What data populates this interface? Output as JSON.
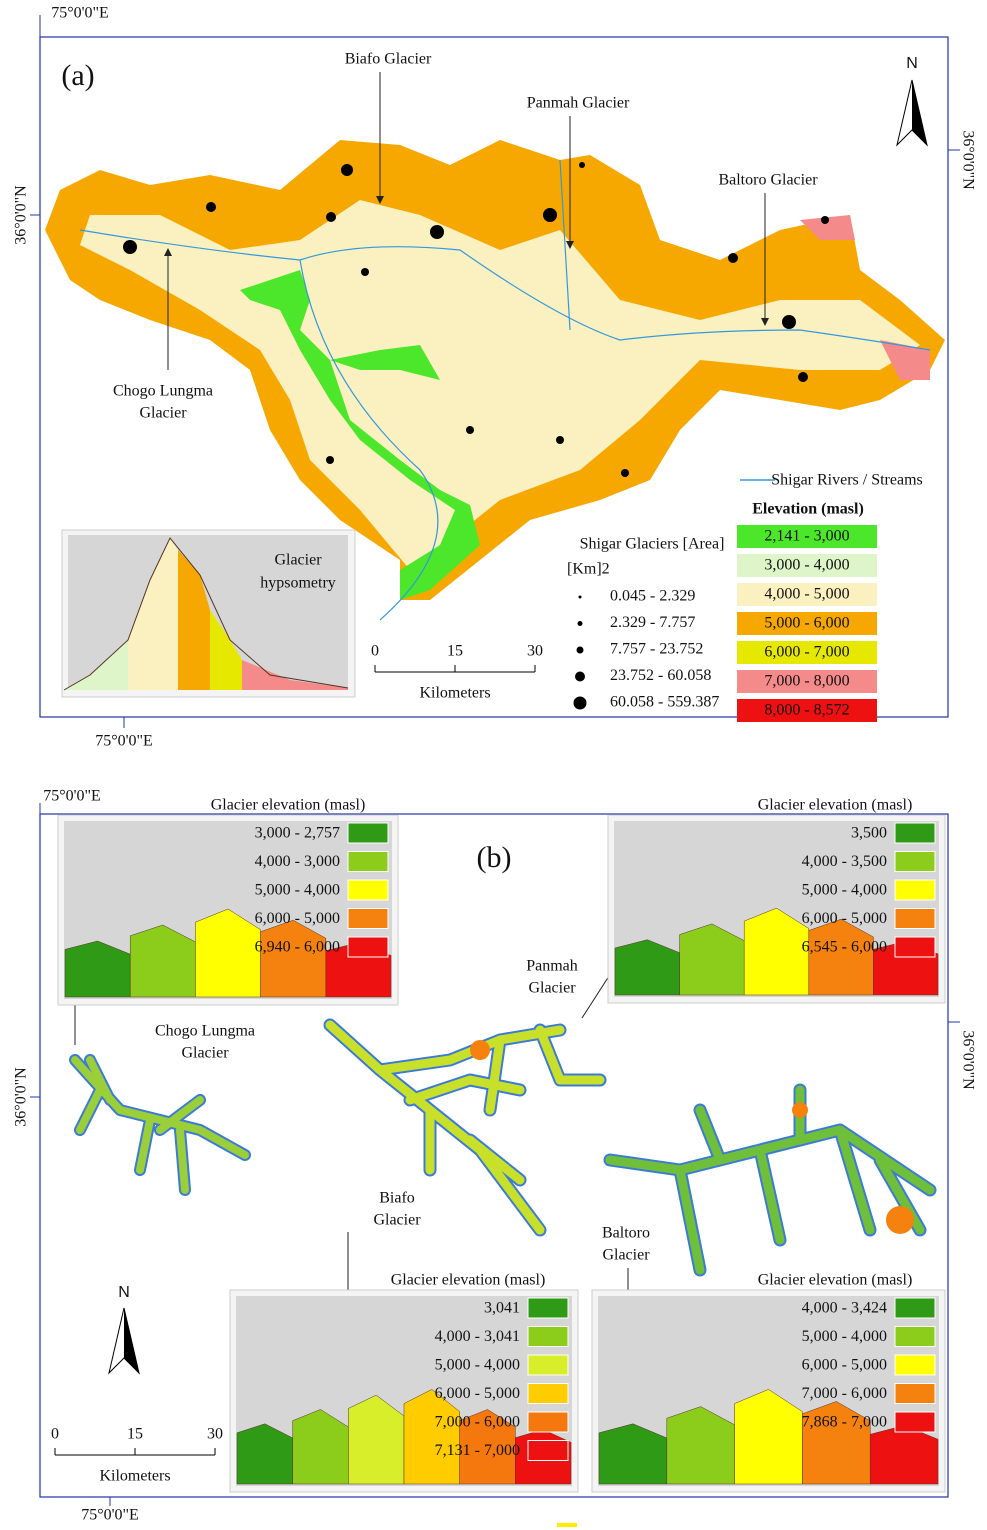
{
  "panel_a": {
    "label": "(a)",
    "north": "N",
    "coords": {
      "top": "75°0'0\"E",
      "bottom": "75°0'0\"E",
      "left": "36°0'0\"N",
      "right": "36°0'0\"N"
    },
    "glaciers": [
      {
        "lines": [
          "Biafo Glacier"
        ]
      },
      {
        "lines": [
          "Panmah Glacier"
        ]
      },
      {
        "lines": [
          "Baltoro Glacier"
        ]
      },
      {
        "lines": [
          "Chogo Lungma",
          "Glacier"
        ]
      }
    ],
    "inset_title": [
      "Glacier",
      "hypsometry"
    ],
    "river_legend": "Shigar Rivers / Streams",
    "elevation_legend": {
      "title": "Elevation (masl)",
      "items": [
        {
          "label": "2,141 - 3,000",
          "color": "#4ce62a"
        },
        {
          "label": "3,000 - 4,000",
          "color": "#ddf5c8"
        },
        {
          "label": "4,000 - 5,000",
          "color": "#fbf0c0"
        },
        {
          "label": "5,000 - 6,000",
          "color": "#f6a800"
        },
        {
          "label": "6,000 - 7,000",
          "color": "#e6e800"
        },
        {
          "label": "7,000 - 8,000",
          "color": "#f58a8a"
        },
        {
          "label": "8,000 - 8,572",
          "color": "#ee1111"
        }
      ]
    },
    "area_legend": {
      "title": "Shigar Glaciers [Area]",
      "unit": "[Km]2",
      "items": [
        "0.045 - 2.329",
        "2.329 - 7.757",
        "7.757 - 23.752",
        "23.752 - 60.058",
        "60.058 - 559.387"
      ]
    },
    "scale": {
      "ticks": [
        0,
        15,
        30
      ],
      "unit": "Kilometers"
    }
  },
  "panel_b": {
    "label": "(b)",
    "north": "N",
    "coords": {
      "top": "75°0'0\"E",
      "bottom": "75°0'0\"E",
      "left": "36°0'0\"N",
      "right": "36°0'0\"N"
    },
    "insets": [
      {
        "glacier": [
          "Chogo Lungma",
          "Glacier"
        ],
        "title": "Glacier elevation (masl)",
        "items": [
          {
            "label": "3,000 - 2,757",
            "color": "#2e9a16"
          },
          {
            "label": "4,000 - 3,000",
            "color": "#8ccc1a"
          },
          {
            "label": "5,000 - 4,000",
            "color": "#ffff00"
          },
          {
            "label": "6,000 - 5,000",
            "color": "#f5820f"
          },
          {
            "label": "6,940 - 6,000",
            "color": "#ee1111"
          }
        ]
      },
      {
        "glacier": [
          "Panmah",
          "Glacier"
        ],
        "title": "Glacier elevation (masl)",
        "items": [
          {
            "label": "3,500",
            "color": "#2e9a16"
          },
          {
            "label": "4,000 - 3,500",
            "color": "#8ccc1a"
          },
          {
            "label": "5,000 - 4,000",
            "color": "#ffff00"
          },
          {
            "label": "6,000 - 5,000",
            "color": "#f5820f"
          },
          {
            "label": "6,545 - 6,000",
            "color": "#ee1111"
          }
        ]
      },
      {
        "glacier": [
          "Biafo",
          "Glacier"
        ],
        "title": "Glacier elevation (masl)",
        "items": [
          {
            "label": "3,041",
            "color": "#2e9a16"
          },
          {
            "label": "4,000 - 3,041",
            "color": "#8ccc1a"
          },
          {
            "label": "5,000 - 4,000",
            "color": "#d8ee2a"
          },
          {
            "label": "6,000 - 5,000",
            "color": "#ffcc00"
          },
          {
            "label": "7,000 - 6,000",
            "color": "#f5780f"
          },
          {
            "label": "7,131 - 7,000",
            "color": "#ee1111"
          }
        ]
      },
      {
        "glacier": [
          "Baltoro",
          "Glacier"
        ],
        "title": "Glacier elevation (masl)",
        "items": [
          {
            "label": "4,000 - 3,424",
            "color": "#2e9a16"
          },
          {
            "label": "5,000 - 4,000",
            "color": "#8ccc1a"
          },
          {
            "label": "6,000 - 5,000",
            "color": "#ffff00"
          },
          {
            "label": "7,000 - 6,000",
            "color": "#f5820f"
          },
          {
            "label": "7,868 - 7,000",
            "color": "#ee1111"
          }
        ]
      }
    ],
    "scale": {
      "ticks": [
        0,
        15,
        30
      ],
      "unit": "Kilometers"
    }
  }
}
